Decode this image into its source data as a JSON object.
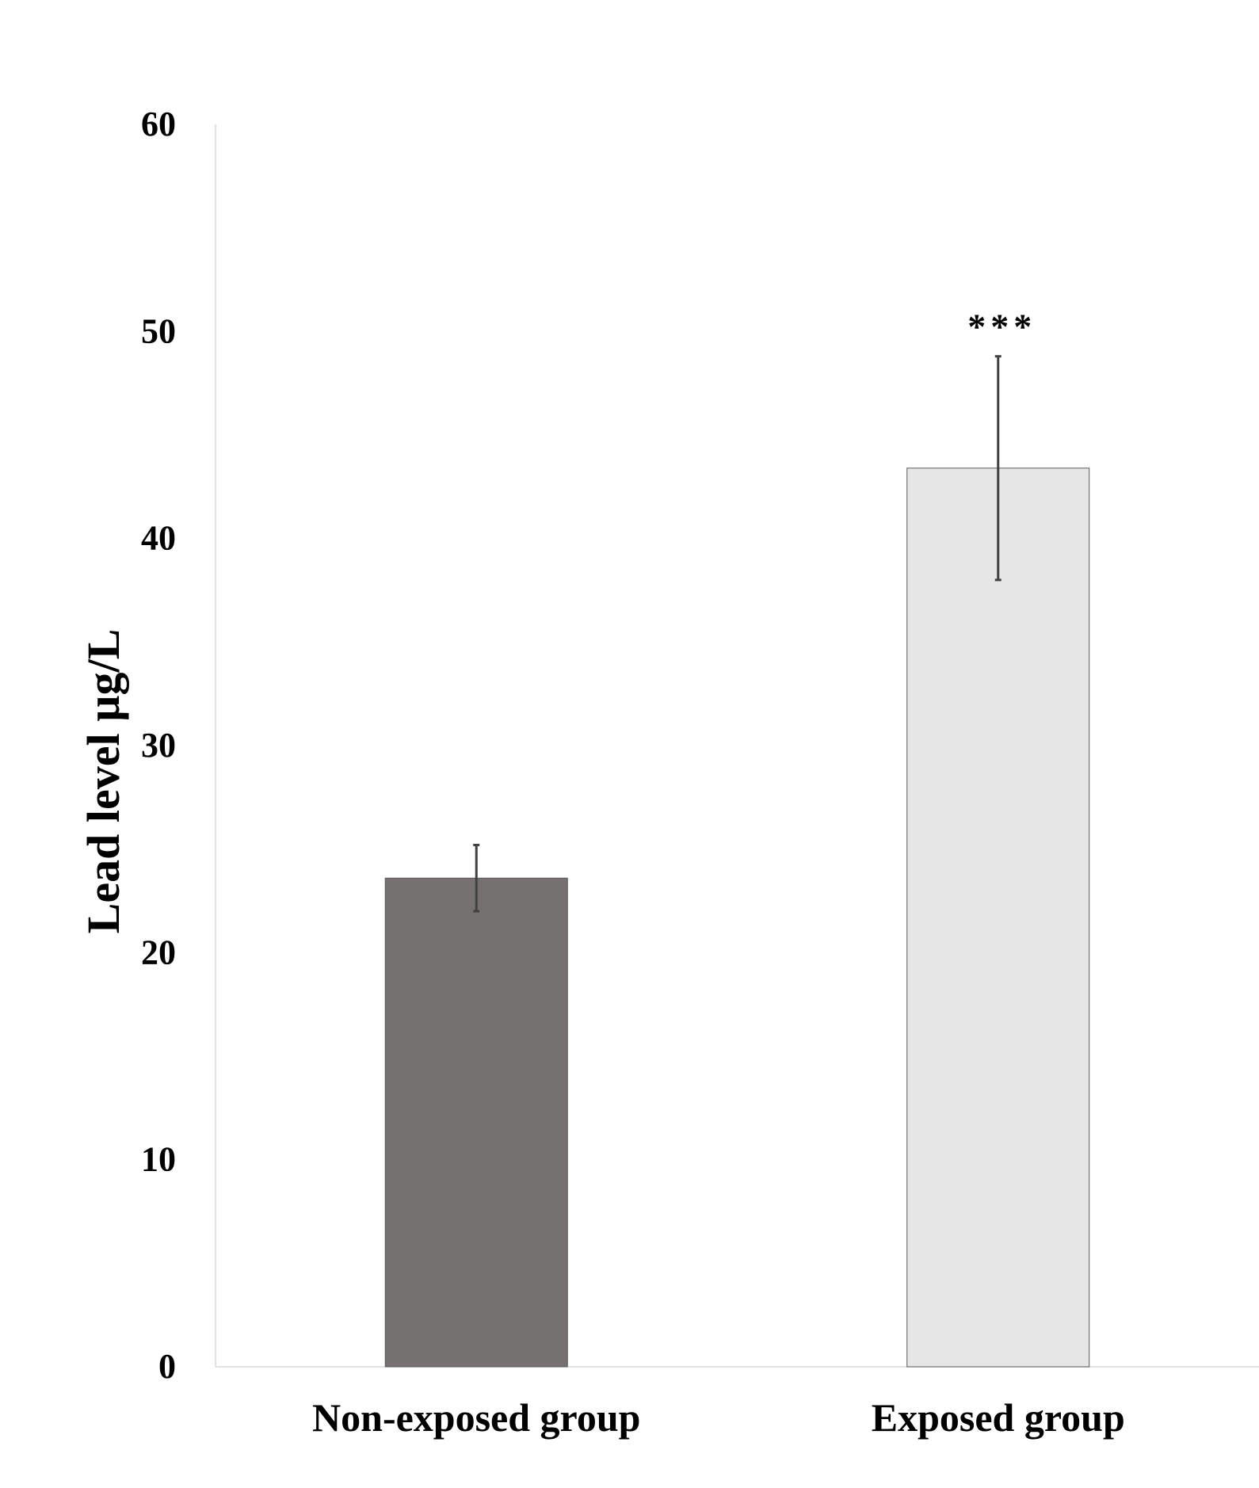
{
  "chart_data": {
    "type": "bar",
    "categories": [
      "Non-exposed group",
      "Exposed group"
    ],
    "values": [
      23.6,
      43.4
    ],
    "error_bars": [
      {
        "low": 22.0,
        "high": 25.2
      },
      {
        "low": 38.0,
        "high": 48.8
      }
    ],
    "annotations": [
      "",
      "***"
    ],
    "title": "",
    "xlabel": "",
    "ylabel": "Lead level µg/L",
    "ylim": [
      0,
      60
    ],
    "yticks": [
      "0",
      "10",
      "20",
      "30",
      "40",
      "50",
      "60"
    ],
    "grid": false,
    "colors": {
      "bars": [
        "#767171",
        "#e7e6e6"
      ],
      "bar_border": "#595959",
      "error_bar": "#404040",
      "axis": "#d9d9d9",
      "text": "#000000"
    }
  }
}
